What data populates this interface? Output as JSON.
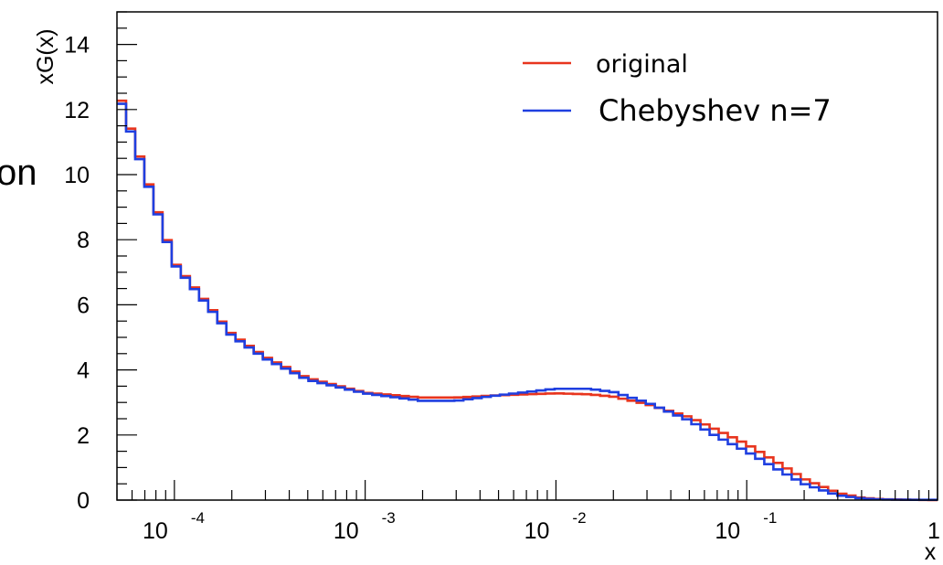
{
  "page": {
    "clipped_text": "on"
  },
  "chart_data": {
    "type": "line",
    "title": "",
    "xlabel": "x",
    "ylabel": "xG(x)",
    "xscale": "log",
    "xlim": [
      5e-05,
      1
    ],
    "ylim": [
      0,
      15
    ],
    "grid": false,
    "legend": "top-right",
    "y_ticks": [
      "0",
      "2",
      "4",
      "6",
      "8",
      "10",
      "12",
      "14"
    ],
    "x_ticks": [
      {
        "base": "10",
        "exp": "-4"
      },
      {
        "base": "10",
        "exp": "-3"
      },
      {
        "base": "10",
        "exp": "-2"
      },
      {
        "base": "10",
        "exp": "-1"
      },
      {
        "base": "",
        "exp": "1"
      }
    ],
    "x": [
      5e-05,
      0.0001,
      0.0002,
      0.0003,
      0.0005,
      0.001,
      0.002,
      0.003,
      0.005,
      0.01,
      0.015,
      0.02,
      0.03,
      0.05,
      0.07,
      0.1,
      0.15,
      0.2,
      0.3,
      0.4,
      0.5,
      0.7,
      1.0
    ],
    "series": [
      {
        "name": "original",
        "color": "#e8351e",
        "values": [
          12.7,
          7.3,
          5.1,
          4.4,
          3.75,
          3.3,
          3.15,
          3.15,
          3.22,
          3.28,
          3.25,
          3.18,
          2.95,
          2.55,
          2.15,
          1.72,
          1.1,
          0.65,
          0.22,
          0.07,
          0.03,
          0.01,
          0.0
        ]
      },
      {
        "name": "Chebyshev n=7",
        "color": "#1f3fe0",
        "values": [
          12.6,
          7.25,
          5.05,
          4.35,
          3.7,
          3.28,
          3.05,
          3.05,
          3.22,
          3.42,
          3.42,
          3.32,
          3.0,
          2.45,
          1.95,
          1.5,
          0.9,
          0.5,
          0.15,
          0.05,
          0.02,
          0.01,
          0.01
        ]
      }
    ]
  }
}
